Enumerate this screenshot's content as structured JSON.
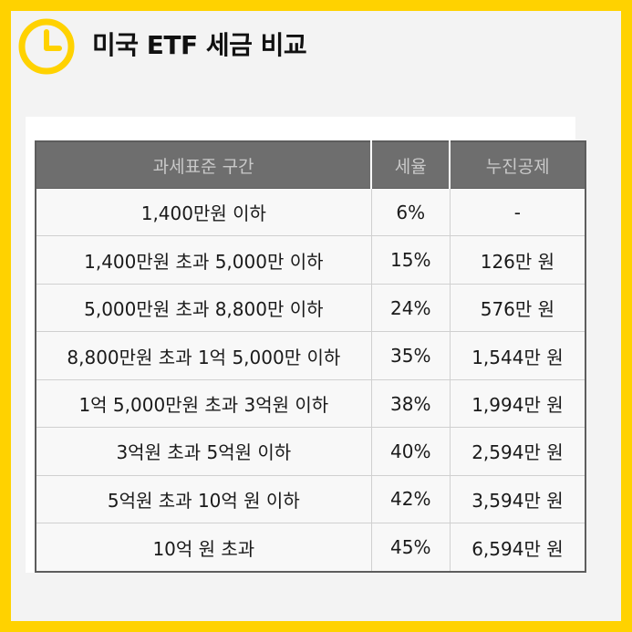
{
  "colors": {
    "accent": "#FFD200",
    "header_bg": "#6e6e6e",
    "header_text": "#c9c9c9"
  },
  "header": {
    "icon": "clock-icon",
    "title": "미국 ETF 세금 비교"
  },
  "table": {
    "columns": [
      "과세표준 구간",
      "세율",
      "누진공제"
    ],
    "rows": [
      [
        "1,400만원 이하",
        "6%",
        "-"
      ],
      [
        "1,400만원 초과 5,000만 이하",
        "15%",
        "126만 원"
      ],
      [
        "5,000만원 초과 8,800만 이하",
        "24%",
        "576만 원"
      ],
      [
        "8,800만원 초과 1억 5,000만 이하",
        "35%",
        "1,544만 원"
      ],
      [
        "1억 5,000만원 초과 3억원 이하",
        "38%",
        "1,994만 원"
      ],
      [
        "3억원 초과 5억원 이하",
        "40%",
        "2,594만 원"
      ],
      [
        "5억원 초과 10억 원 이하",
        "42%",
        "3,594만 원"
      ],
      [
        "10억 원 초과",
        "45%",
        "6,594만 원"
      ]
    ]
  }
}
